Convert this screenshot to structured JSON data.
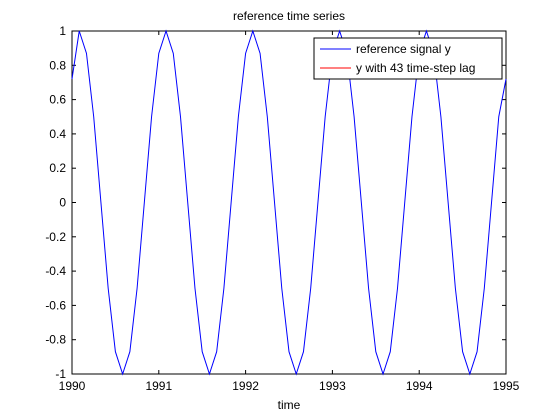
{
  "chart_data": {
    "type": "line",
    "title": "reference time series",
    "xlabel": "time",
    "ylabel": "",
    "xlim": [
      1990,
      1995
    ],
    "ylim": [
      -1,
      1
    ],
    "xticks": [
      "1990",
      "1991",
      "1992",
      "1993",
      "1994",
      "1995"
    ],
    "yticks": [
      "-1",
      "-0.8",
      "-0.6",
      "-0.4",
      "-0.2",
      "0",
      "0.2",
      "0.4",
      "0.6",
      "0.8",
      "1"
    ],
    "grid": false,
    "legend_position": "top-right",
    "series": [
      {
        "name": "reference signal y",
        "color": "#0000ff",
        "x": [
          1990.0,
          1990.0833,
          1990.1667,
          1990.25,
          1990.3333,
          1990.4167,
          1990.5,
          1990.5833,
          1990.6667,
          1990.75,
          1990.8333,
          1990.9167,
          1991.0,
          1991.0833,
          1991.1667,
          1991.25,
          1991.3333,
          1991.4167,
          1991.5,
          1991.5833,
          1991.6667,
          1991.75,
          1991.8333,
          1991.9167,
          1992.0,
          1992.0833,
          1992.1667,
          1992.25,
          1992.3333,
          1992.4167,
          1992.5,
          1992.5833,
          1992.6667,
          1992.75,
          1992.8333,
          1992.9167,
          1993.0,
          1993.0833,
          1993.1667,
          1993.25,
          1993.3333,
          1993.4167,
          1993.5,
          1993.5833,
          1993.6667,
          1993.75,
          1993.8333,
          1993.9167,
          1994.0,
          1994.0833,
          1994.1667,
          1994.25,
          1994.3333,
          1994.4167,
          1994.5,
          1994.5833,
          1994.6667,
          1994.75,
          1994.8333,
          1994.9167,
          1995.0
        ],
        "values": [
          0.72,
          1.0,
          0.87,
          0.5,
          0.0,
          -0.5,
          -0.87,
          -1.0,
          -0.87,
          -0.5,
          0.0,
          0.5,
          0.87,
          1.0,
          0.87,
          0.5,
          0.0,
          -0.5,
          -0.87,
          -1.0,
          -0.87,
          -0.5,
          0.0,
          0.5,
          0.87,
          1.0,
          0.87,
          0.5,
          0.0,
          -0.5,
          -0.87,
          -1.0,
          -0.87,
          -0.5,
          0.0,
          0.5,
          0.87,
          1.0,
          0.87,
          0.5,
          0.0,
          -0.5,
          -0.87,
          -1.0,
          -0.87,
          -0.5,
          0.0,
          0.5,
          0.87,
          1.0,
          0.87,
          0.5,
          0.0,
          -0.5,
          -0.87,
          -1.0,
          -0.87,
          -0.5,
          0.0,
          0.5,
          0.72
        ]
      },
      {
        "name": "y with 43 time-step lag",
        "color": "#ff0000",
        "x": [],
        "values": []
      }
    ]
  }
}
